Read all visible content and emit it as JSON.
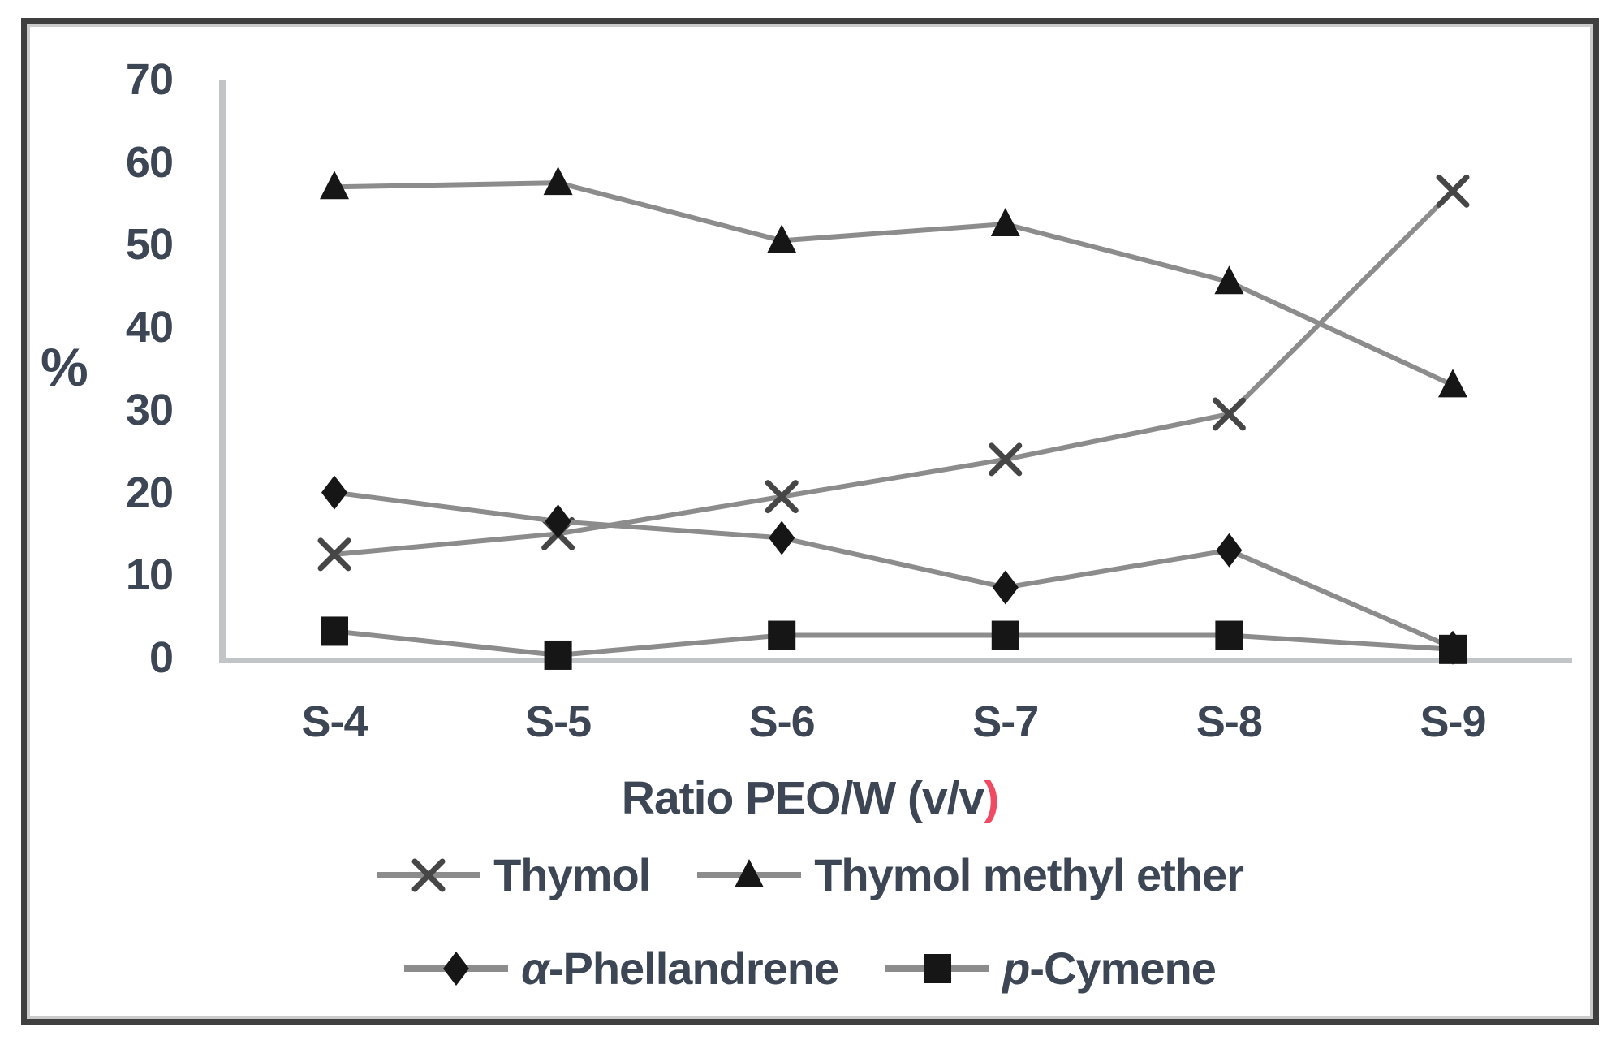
{
  "chart_data": {
    "type": "line",
    "categories": [
      "S-4",
      "S-5",
      "S-6",
      "S-7",
      "S-8",
      "S-9"
    ],
    "series": [
      {
        "name": "Thymol",
        "marker": "x",
        "values": [
          12.5,
          15,
          19.5,
          24,
          29.5,
          56.5
        ]
      },
      {
        "name": "Thymol methyl ether",
        "marker": "triangle",
        "values": [
          57,
          57.5,
          50.5,
          52.5,
          45.5,
          33
        ]
      },
      {
        "name": "α-Phellandrene",
        "marker": "diamond",
        "values": [
          20,
          16.5,
          14.5,
          8.5,
          13,
          1.2
        ]
      },
      {
        "name": "p-Cymene",
        "marker": "square",
        "values": [
          3.2,
          0.3,
          2.7,
          2.7,
          2.7,
          1
        ]
      }
    ],
    "yticks": [
      0,
      10,
      20,
      30,
      40,
      50,
      60,
      70
    ],
    "ylim": [
      0,
      70
    ],
    "ylabel": "%",
    "xlabel": "Ratio PEO/W (v/v)",
    "xlabel_main": "Ratio PEO/W (v/v",
    "xlabel_paren": ")",
    "grid": false,
    "legend_position": "bottom",
    "legend_rows": [
      [
        {
          "marker": "x",
          "italic": "",
          "label": "Thymol"
        },
        {
          "marker": "triangle",
          "italic": "",
          "label": "Thymol methyl ether"
        }
      ],
      [
        {
          "marker": "diamond",
          "italic": "α",
          "label": "-Phellandrene"
        },
        {
          "marker": "square",
          "italic": "p",
          "label": "-Cymene"
        }
      ]
    ],
    "colors": {
      "text": "#3d4654",
      "line": "#8c8c8c",
      "marker": "#161616",
      "x_marker_stroke": "#464646",
      "axis_line": "#c2c5c7",
      "frame": "#3f3f3f",
      "frame_inner": "#cbcbcb",
      "paren": "#ef4b62"
    }
  }
}
